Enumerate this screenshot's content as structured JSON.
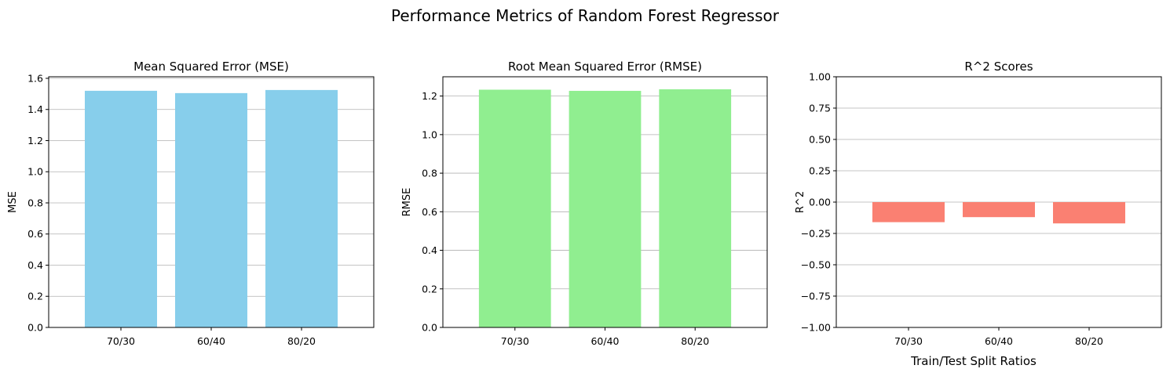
{
  "figure": {
    "title": "Performance Metrics of Random Forest Regressor",
    "xlabel": "Train/Test Split Ratios"
  },
  "chart_data": [
    {
      "type": "bar",
      "title": "Mean Squared Error (MSE)",
      "xlabel": "",
      "ylabel": "MSE",
      "categories": [
        "70/30",
        "60/40",
        "80/20"
      ],
      "values": [
        1.52,
        1.505,
        1.525
      ],
      "ylim": [
        0,
        1.61
      ],
      "yticks": [
        0.0,
        0.2,
        0.4,
        0.6,
        0.8,
        1.0,
        1.2,
        1.4,
        1.6
      ],
      "ytick_labels": [
        "0.0",
        "0.2",
        "0.4",
        "0.6",
        "0.8",
        "1.0",
        "1.2",
        "1.4",
        "1.6"
      ],
      "color": "#87ceeb",
      "grid": "y"
    },
    {
      "type": "bar",
      "title": "Root Mean Squared Error (RMSE)",
      "xlabel": "",
      "ylabel": "RMSE",
      "categories": [
        "70/30",
        "60/40",
        "80/20"
      ],
      "values": [
        1.233,
        1.227,
        1.235
      ],
      "ylim": [
        0,
        1.3
      ],
      "yticks": [
        0.0,
        0.2,
        0.4,
        0.6,
        0.8,
        1.0,
        1.2
      ],
      "ytick_labels": [
        "0.0",
        "0.2",
        "0.4",
        "0.6",
        "0.8",
        "1.0",
        "1.2"
      ],
      "color": "#90ee90",
      "grid": "y"
    },
    {
      "type": "bar",
      "title": "R^2 Scores",
      "xlabel": "",
      "ylabel": "R^2",
      "categories": [
        "70/30",
        "60/40",
        "80/20"
      ],
      "values": [
        -0.16,
        -0.12,
        -0.17
      ],
      "ylim": [
        -1,
        1
      ],
      "yticks": [
        -1.0,
        -0.75,
        -0.5,
        -0.25,
        0.0,
        0.25,
        0.5,
        0.75,
        1.0
      ],
      "ytick_labels": [
        "−1.00",
        "−0.75",
        "−0.50",
        "−0.25",
        "0.00",
        "0.25",
        "0.50",
        "0.75",
        "1.00"
      ],
      "color": "#fa8072",
      "grid": "y"
    }
  ]
}
